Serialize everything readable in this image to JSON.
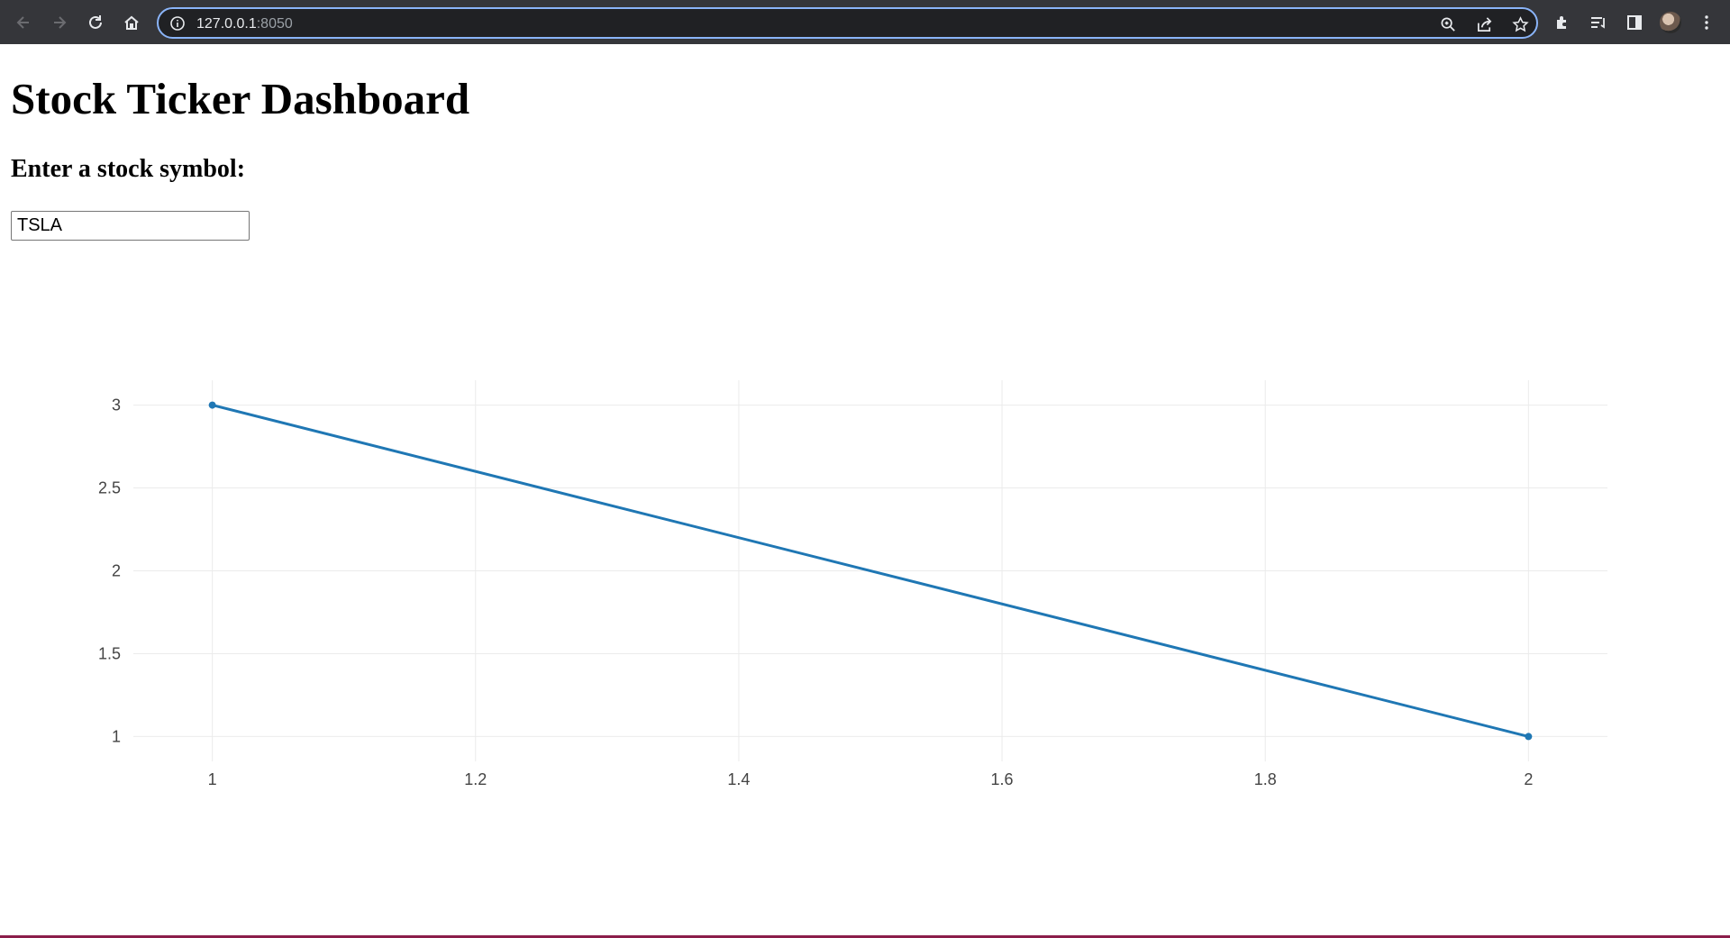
{
  "browser": {
    "url_host": "127.0.0.1",
    "url_port": ":8050",
    "icons": [
      "back-icon",
      "forward-icon",
      "reload-icon",
      "home-icon",
      "info-icon",
      "zoom-icon",
      "share-icon",
      "bookmark-star-icon",
      "extensions-icon",
      "reading-list-icon",
      "side-panel-icon",
      "profile-avatar",
      "menu-icon"
    ]
  },
  "page": {
    "title": "Stock Ticker Dashboard",
    "prompt": "Enter a stock symbol:",
    "symbol_value": "TSLA"
  },
  "colors": {
    "line": "#1f77b4",
    "grid": "#ebebeb",
    "tick_text": "#444444"
  },
  "chart_data": {
    "type": "line",
    "title": "",
    "xlabel": "",
    "ylabel": "",
    "x": [
      1,
      2
    ],
    "series": [
      {
        "values": [
          3,
          1
        ]
      }
    ],
    "xlim": [
      0.94,
      2.06
    ],
    "ylim": [
      0.85,
      3.15
    ],
    "xticks": [
      1,
      1.2,
      1.4,
      1.6,
      1.8,
      2
    ],
    "xtick_labels": [
      "1",
      "1.2",
      "1.4",
      "1.6",
      "1.8",
      "2"
    ],
    "yticks": [
      1,
      1.5,
      2,
      2.5,
      3
    ],
    "ytick_labels": [
      "1",
      "1.5",
      "2",
      "2.5",
      "3"
    ],
    "grid": true,
    "markers": true,
    "legend": "none"
  }
}
